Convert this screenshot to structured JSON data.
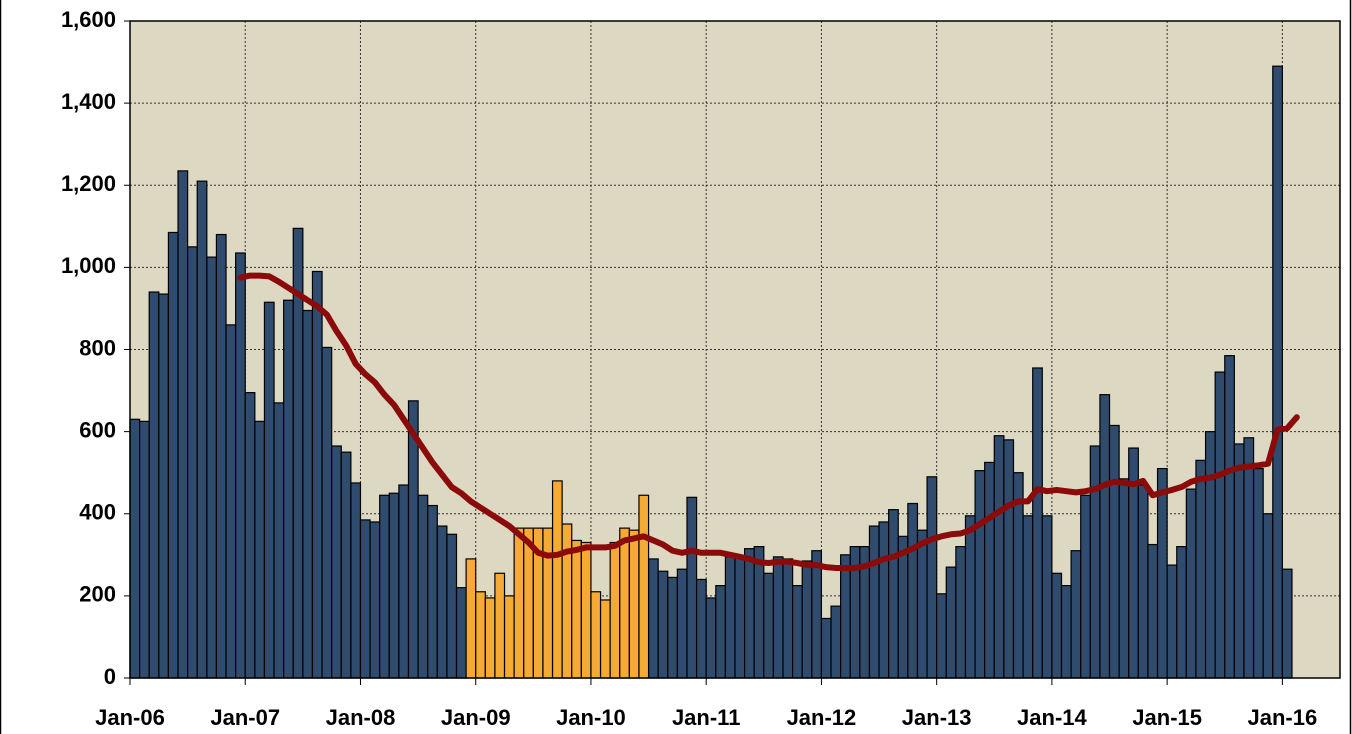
{
  "chart_data": {
    "type": "bar",
    "categories": [
      "Jan-06",
      null,
      null,
      null,
      null,
      null,
      null,
      null,
      null,
      null,
      null,
      null,
      "Jan-07",
      null,
      null,
      null,
      null,
      null,
      null,
      null,
      null,
      null,
      null,
      null,
      "Jan-08",
      null,
      null,
      null,
      null,
      null,
      null,
      null,
      null,
      null,
      null,
      null,
      "Jan-09",
      null,
      null,
      null,
      null,
      null,
      null,
      null,
      null,
      null,
      null,
      null,
      "Jan-10",
      null,
      null,
      null,
      null,
      null,
      null,
      null,
      null,
      null,
      null,
      null,
      "Jan-11",
      null,
      null,
      null,
      null,
      null,
      null,
      null,
      null,
      null,
      null,
      null,
      "Jan-12",
      null,
      null,
      null,
      null,
      null,
      null,
      null,
      null,
      null,
      null,
      null,
      "Jan-13",
      null,
      null,
      null,
      null,
      null,
      null,
      null,
      null,
      null,
      null,
      null,
      "Jan-14",
      null,
      null,
      null,
      null,
      null,
      null,
      null,
      null,
      null,
      null,
      null,
      "Jan-15",
      null,
      null,
      null,
      null,
      null,
      null,
      null,
      null,
      null,
      null,
      null,
      "Jan-16",
      null,
      null,
      null,
      null,
      null
    ],
    "series": [
      {
        "color": "#2f4b6e",
        "values": [
          630,
          625,
          940,
          935,
          1085,
          1235,
          1050,
          1210,
          1025,
          1080,
          860,
          1035,
          695,
          625,
          915,
          670,
          920,
          1095,
          895,
          990,
          805,
          565,
          550,
          475,
          385,
          380,
          445,
          450,
          470,
          675,
          445,
          420,
          370,
          350,
          220,
          null,
          null,
          null,
          null,
          null,
          null,
          null,
          null,
          null,
          null,
          null,
          null,
          null,
          null,
          null,
          null,
          null,
          null,
          null,
          290,
          260,
          245,
          265,
          440,
          240,
          195,
          225,
          295,
          295,
          315,
          320,
          255,
          295,
          290,
          225,
          285,
          310,
          145,
          175,
          300,
          320,
          320,
          370,
          380,
          410,
          345,
          425,
          360,
          490,
          205,
          270,
          320,
          395,
          505,
          525,
          590,
          580,
          500,
          395,
          755,
          395,
          255,
          225,
          310,
          445,
          565,
          690,
          615,
          485,
          560,
          470,
          325,
          510,
          275,
          320,
          460,
          530,
          600,
          745,
          785,
          570,
          585,
          510,
          400,
          1490,
          265,
          null,
          null,
          null,
          null,
          null
        ]
      },
      {
        "color": "#f5aa35",
        "values": [
          null,
          null,
          null,
          null,
          null,
          null,
          null,
          null,
          null,
          null,
          null,
          null,
          null,
          null,
          null,
          null,
          null,
          null,
          null,
          null,
          null,
          null,
          null,
          null,
          null,
          null,
          null,
          null,
          null,
          null,
          null,
          null,
          null,
          null,
          null,
          290,
          210,
          195,
          255,
          200,
          365,
          365,
          365,
          365,
          480,
          375,
          335,
          330,
          210,
          190,
          330,
          365,
          360,
          445,
          null,
          null,
          null,
          null,
          null,
          null,
          null,
          null,
          null,
          null,
          null,
          null,
          null,
          null,
          null,
          null,
          null,
          null,
          null,
          null,
          null,
          null,
          null,
          null,
          null,
          null,
          null,
          null,
          null,
          null,
          null,
          null,
          null,
          null,
          null,
          null,
          null,
          null,
          null,
          null,
          null,
          null,
          null,
          null,
          null,
          null,
          null,
          null,
          null,
          null,
          null,
          null,
          null,
          null,
          null,
          null,
          null,
          null,
          null,
          null,
          null,
          null,
          null,
          null,
          null,
          null,
          null,
          null,
          null,
          null,
          null,
          null
        ]
      },
      {
        "type": "line",
        "color": "#8b0a0a",
        "values": [
          null,
          null,
          null,
          null,
          null,
          null,
          null,
          null,
          null,
          null,
          null,
          975,
          980,
          980,
          978,
          965,
          950,
          935,
          920,
          905,
          885,
          845,
          810,
          765,
          740,
          720,
          690,
          665,
          630,
          595,
          560,
          525,
          495,
          465,
          450,
          430,
          415,
          400,
          385,
          370,
          350,
          330,
          305,
          298,
          300,
          308,
          312,
          318,
          318,
          318,
          322,
          335,
          340,
          345,
          335,
          325,
          310,
          305,
          310,
          305,
          305,
          305,
          300,
          295,
          290,
          282,
          280,
          283,
          283,
          280,
          275,
          275,
          270,
          268,
          268,
          268,
          272,
          280,
          290,
          295,
          305,
          315,
          328,
          338,
          345,
          350,
          352,
          360,
          375,
          390,
          405,
          420,
          430,
          430,
          460,
          455,
          458,
          455,
          452,
          455,
          460,
          470,
          478,
          475,
          472,
          480,
          445,
          452,
          458,
          465,
          478,
          485,
          488,
          495,
          505,
          512,
          515,
          518,
          522,
          605,
          608,
          635,
          null,
          null,
          null,
          null
        ]
      }
    ],
    "ylim": [
      0,
      1600
    ],
    "yticks": [
      0,
      200,
      400,
      600,
      800,
      {
        "value": 1000,
        "label": "1,000"
      },
      {
        "value": 1200,
        "label": "1,200"
      },
      {
        "value": 1400,
        "label": "1,400"
      },
      {
        "value": 1600,
        "label": "1,600"
      }
    ],
    "grid": true,
    "background": "#ddd8c2"
  }
}
